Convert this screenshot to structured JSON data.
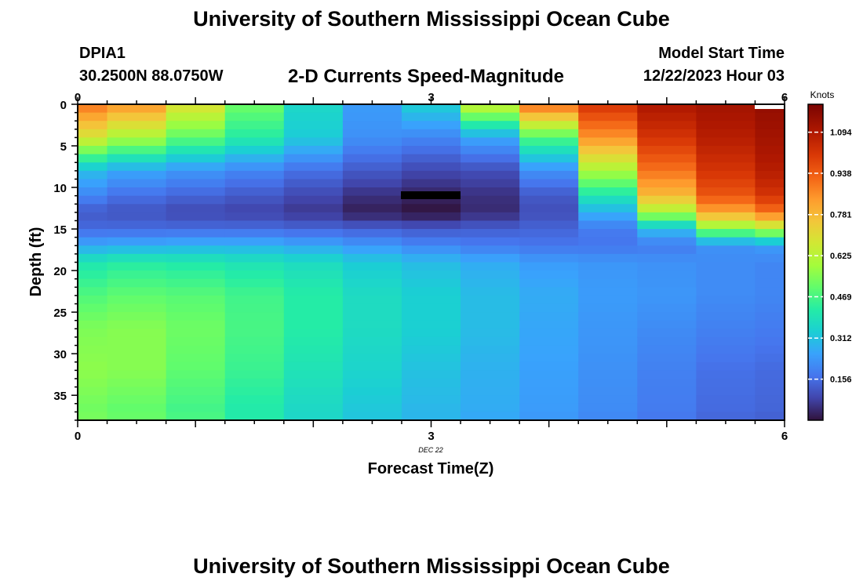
{
  "header": {
    "title_top": "University of Southern Mississippi Ocean Cube",
    "title_bottom": "University of Southern Mississippi Ocean Cube",
    "station": "DPIA1",
    "coordinates": "30.2500N  88.0750W",
    "subtitle": "2-D Currents Speed-Magnitude",
    "model_start_label": "Model Start Time",
    "model_start_value": "12/22/2023 Hour 03"
  },
  "chart_data": {
    "type": "heatmap",
    "title": "2-D Currents Speed-Magnitude",
    "xlabel": "Forecast Time(Z)",
    "ylabel": "Depth (ft)",
    "x_ticks": [
      "0",
      "3",
      "6"
    ],
    "x_tick_values": [
      0,
      3,
      6
    ],
    "x_date_label": "DEC 22",
    "xlim": [
      0,
      6
    ],
    "y_ticks": [
      "0",
      "5",
      "10",
      "15",
      "20",
      "25",
      "30",
      "35"
    ],
    "y_tick_values": [
      0,
      5,
      10,
      15,
      20,
      25,
      30,
      35
    ],
    "ylim": [
      0,
      38
    ],
    "colorbar_label": "Knots",
    "colorbar_ticks": [
      "0.156",
      "0.312",
      "0.469",
      "0.625",
      "0.781",
      "0.938",
      "1.094"
    ],
    "colorbar_tick_values": [
      0.156,
      0.312,
      0.469,
      0.625,
      0.781,
      0.938,
      1.094
    ],
    "vmin": 0,
    "vmax": 1.2,
    "time_columns_hours": [
      0,
      0.5,
      1,
      1.5,
      2,
      2.5,
      3,
      3.5,
      4,
      4.5,
      5,
      5.5,
      6
    ],
    "depth_knots_ft": [
      0,
      4,
      8,
      11,
      13,
      15,
      17,
      19,
      23,
      27,
      32,
      37,
      38
    ],
    "speed_knots": [
      [
        0.9,
        0.68,
        0.3,
        0.2,
        0.12,
        0.15,
        0.26,
        0.4,
        0.48,
        0.54,
        0.56,
        0.52,
        0.54
      ],
      [
        0.85,
        0.6,
        0.26,
        0.16,
        0.11,
        0.15,
        0.27,
        0.42,
        0.5,
        0.55,
        0.55,
        0.5,
        0.52
      ],
      [
        0.7,
        0.5,
        0.23,
        0.14,
        0.09,
        0.15,
        0.28,
        0.41,
        0.49,
        0.52,
        0.5,
        0.46,
        0.48
      ],
      [
        0.52,
        0.42,
        0.2,
        0.12,
        0.08,
        0.15,
        0.28,
        0.39,
        0.46,
        0.47,
        0.45,
        0.41,
        0.42
      ],
      [
        0.36,
        0.33,
        0.16,
        0.09,
        0.06,
        0.14,
        0.26,
        0.37,
        0.42,
        0.42,
        0.39,
        0.36,
        0.36
      ],
      [
        0.24,
        0.22,
        0.12,
        0.05,
        0.02,
        0.13,
        0.23,
        0.33,
        0.37,
        0.37,
        0.35,
        0.32,
        0.32
      ],
      [
        0.34,
        0.2,
        0.09,
        0.03,
        0.0,
        0.12,
        0.2,
        0.3,
        0.34,
        0.34,
        0.31,
        0.29,
        0.29
      ],
      [
        0.66,
        0.26,
        0.1,
        0.05,
        0.04,
        0.13,
        0.18,
        0.27,
        0.3,
        0.3,
        0.28,
        0.27,
        0.26
      ],
      [
        0.92,
        0.48,
        0.22,
        0.12,
        0.1,
        0.14,
        0.17,
        0.24,
        0.27,
        0.26,
        0.25,
        0.24,
        0.23
      ],
      [
        1.02,
        0.85,
        0.6,
        0.4,
        0.28,
        0.18,
        0.17,
        0.23,
        0.24,
        0.23,
        0.22,
        0.21,
        0.2
      ],
      [
        1.1,
        1.02,
        0.9,
        0.78,
        0.6,
        0.3,
        0.18,
        0.22,
        0.23,
        0.21,
        0.19,
        0.18,
        0.17
      ],
      [
        1.12,
        1.08,
        1.02,
        0.95,
        0.82,
        0.55,
        0.22,
        0.21,
        0.21,
        0.19,
        0.16,
        0.15,
        0.14
      ],
      [
        1.15,
        1.12,
        1.08,
        1.02,
        0.9,
        0.62,
        0.24,
        0.2,
        0.2,
        0.18,
        0.15,
        0.14,
        0.13
      ]
    ]
  }
}
